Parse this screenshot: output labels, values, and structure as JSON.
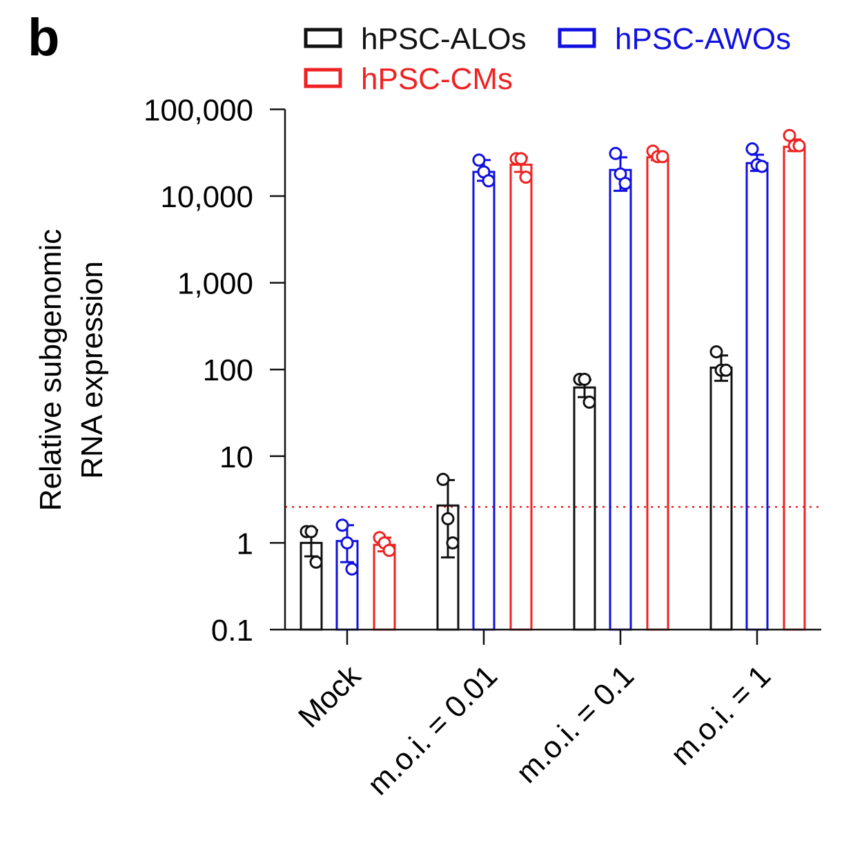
{
  "panel_label": "b",
  "colors": {
    "black": "#111111",
    "blue": "#1010e0",
    "red": "#ee2222"
  },
  "chart_data": {
    "type": "bar",
    "title": "",
    "xlabel": "",
    "ylabel_lines": [
      "Relative subgenomic",
      "RNA expression"
    ],
    "yscale": "log",
    "ylim": [
      0.1,
      100000
    ],
    "yticks": [
      {
        "value": 0.1,
        "label": "0.1"
      },
      {
        "value": 1,
        "label": "1"
      },
      {
        "value": 10,
        "label": "10"
      },
      {
        "value": 100,
        "label": "100"
      },
      {
        "value": 1000,
        "label": "1,000"
      },
      {
        "value": 10000,
        "label": "10,000"
      },
      {
        "value": 100000,
        "label": "100,000"
      }
    ],
    "categories": [
      "Mock",
      "m.o.i. = 0.01",
      "m.o.i. = 0.1",
      "m.o.i. = 1"
    ],
    "threshold": 2.6,
    "legend_placement": "top",
    "series": [
      {
        "name": "hPSC-ALOs",
        "color": "#111111",
        "values": [
          1.0,
          2.7,
          62,
          105
        ],
        "errors": [
          [
            0.7,
            1.4
          ],
          [
            0.68,
            5.3
          ],
          [
            48,
            76
          ],
          [
            74,
            145
          ]
        ],
        "points": [
          [
            1.35,
            1.35,
            0.6
          ],
          [
            5.4,
            1.9,
            1.0
          ],
          [
            77,
            77,
            42
          ],
          [
            160,
            98,
            98
          ]
        ]
      },
      {
        "name": "hPSC-AWOs",
        "color": "#1010e0",
        "values": [
          1.05,
          19000,
          20000,
          24000
        ],
        "errors": [
          [
            0.6,
            1.6
          ],
          [
            15000,
            26000
          ],
          [
            11500,
            28000
          ],
          [
            19500,
            30000
          ]
        ],
        "points": [
          [
            1.6,
            1.0,
            0.5
          ],
          [
            26000,
            19000,
            15000
          ],
          [
            31000,
            18000,
            14000
          ],
          [
            35000,
            23000,
            22000
          ]
        ]
      },
      {
        "name": "hPSC-CMs",
        "color": "#ee2222",
        "values": [
          0.95,
          23000,
          28000,
          37000
        ],
        "errors": [
          [
            0.8,
            1.15
          ],
          [
            19000,
            28000
          ],
          [
            26000,
            32000
          ],
          [
            33000,
            45000
          ]
        ],
        "points": [
          [
            1.15,
            1.0,
            0.82
          ],
          [
            27000,
            27000,
            16500
          ],
          [
            33000,
            28500,
            28500
          ],
          [
            50000,
            38000,
            38000
          ]
        ]
      }
    ]
  }
}
